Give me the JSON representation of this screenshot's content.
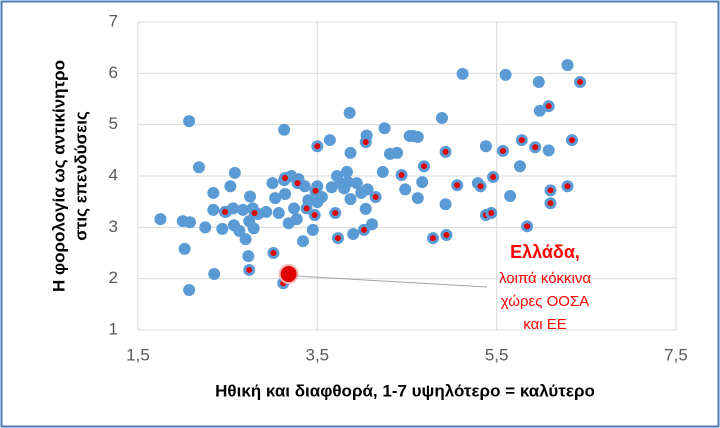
{
  "chart_data": {
    "type": "scatter",
    "x_label": "Ηθική και διαφθορά, 1-7 υψηλότερο = καλύτερο",
    "y_label": [
      "Η φορολογία  ως αντικίνητρο",
      "στις επενδύσεις"
    ],
    "xlim": [
      1.5,
      7.5
    ],
    "xticks": [
      {
        "value": 1.5,
        "label": "1,5"
      },
      {
        "value": 3.5,
        "label": "3,5"
      },
      {
        "value": 5.5,
        "label": "5,5"
      },
      {
        "value": 7.5,
        "label": "7,5"
      }
    ],
    "ylim": [
      1,
      7
    ],
    "yticks": [
      1,
      2,
      3,
      4,
      5,
      6,
      7
    ],
    "grid": true,
    "series": [
      {
        "color": "#5b9bd5",
        "marker_size": 6,
        "x": [
          1.75,
          2.0,
          2.02,
          2.08,
          2.07,
          2.07,
          2.18,
          2.25,
          2.34,
          2.34,
          2.35,
          2.44,
          2.48,
          2.53,
          2.58,
          2.56,
          2.57,
          2.63,
          2.67,
          2.7,
          2.75,
          2.74,
          2.78,
          2.79,
          2.84,
          2.73,
          2.93,
          3.0,
          3.03,
          3.07,
          3.13,
          3.13,
          3.14,
          3.18,
          3.21,
          3.24,
          3.27,
          3.29,
          3.34,
          3.36,
          3.4,
          3.45,
          3.5,
          3.5,
          3.55,
          3.64,
          3.66,
          3.72,
          3.76,
          3.8,
          3.83,
          3.84,
          3.86,
          3.87,
          3.87,
          3.94,
          3.99,
          4.05,
          4.04,
          4.06,
          4.11,
          3.9,
          4.23,
          4.25,
          4.31,
          4.39,
          4.48,
          4.53,
          4.57,
          4.62,
          4.62,
          4.67,
          4.89,
          4.93,
          5.12,
          5.29,
          5.38,
          5.6,
          5.65,
          5.76,
          5.97,
          5.98,
          6.29,
          6.08
        ],
        "values": [
          3.16,
          3.12,
          2.58,
          3.1,
          1.78,
          5.07,
          4.17,
          3.0,
          3.67,
          3.34,
          2.09,
          2.97,
          3.3,
          3.8,
          4.06,
          3.37,
          3.04,
          2.93,
          3.34,
          2.77,
          3.6,
          3.12,
          3.37,
          2.98,
          3.26,
          2.44,
          3.3,
          3.86,
          3.57,
          3.28,
          4.9,
          3.92,
          3.65,
          3.08,
          4.0,
          3.37,
          3.16,
          3.94,
          2.73,
          3.8,
          3.53,
          2.95,
          3.8,
          3.49,
          3.59,
          4.7,
          3.78,
          4.0,
          3.86,
          3.76,
          4.08,
          3.88,
          5.23,
          4.45,
          3.55,
          3.86,
          3.67,
          4.79,
          3.36,
          3.74,
          3.06,
          2.87,
          4.08,
          4.93,
          4.43,
          4.45,
          3.74,
          4.78,
          4.78,
          4.76,
          3.57,
          3.88,
          5.13,
          3.45,
          5.99,
          3.86,
          4.58,
          5.97,
          3.61,
          4.19,
          5.83,
          5.27,
          6.16,
          4.5
        ]
      },
      {
        "color": "#e00000",
        "edge_color": "#5b9bd5",
        "marker_size": 6,
        "x": [
          3.5,
          3.14,
          3.28,
          3.01,
          2.8,
          2.74,
          2.47,
          3.48,
          3.47,
          3.38,
          3.7,
          3.73,
          4.04,
          4.15,
          4.02,
          4.44,
          4.69,
          4.93,
          4.79,
          4.94,
          5.06,
          5.32,
          5.38,
          5.46,
          5.44,
          5.57,
          5.78,
          5.93,
          5.84,
          6.08,
          6.1,
          6.1,
          6.29,
          6.34,
          6.43,
          3.12
        ],
        "values": [
          4.58,
          3.96,
          3.86,
          2.5,
          3.28,
          2.17,
          3.3,
          3.71,
          3.24,
          3.37,
          3.28,
          2.79,
          4.66,
          3.59,
          2.95,
          4.02,
          4.19,
          4.47,
          2.79,
          2.85,
          3.82,
          3.8,
          3.24,
          3.98,
          3.28,
          4.49,
          4.7,
          4.56,
          3.02,
          5.36,
          3.72,
          3.47,
          3.8,
          4.7,
          5.83,
          1.91
        ]
      },
      {
        "color": "#e00000",
        "edge_color": "#f2b8b8",
        "marker_size": 9,
        "x": [
          3.18
        ],
        "values": [
          2.09
        ]
      }
    ],
    "annotation": {
      "title": "Ελλάδα,",
      "lines": [
        "λοιπά κόκκινα",
        "χώρες ΟΟΣΑ",
        "και ΕΕ"
      ],
      "color": "#ff0000"
    }
  }
}
